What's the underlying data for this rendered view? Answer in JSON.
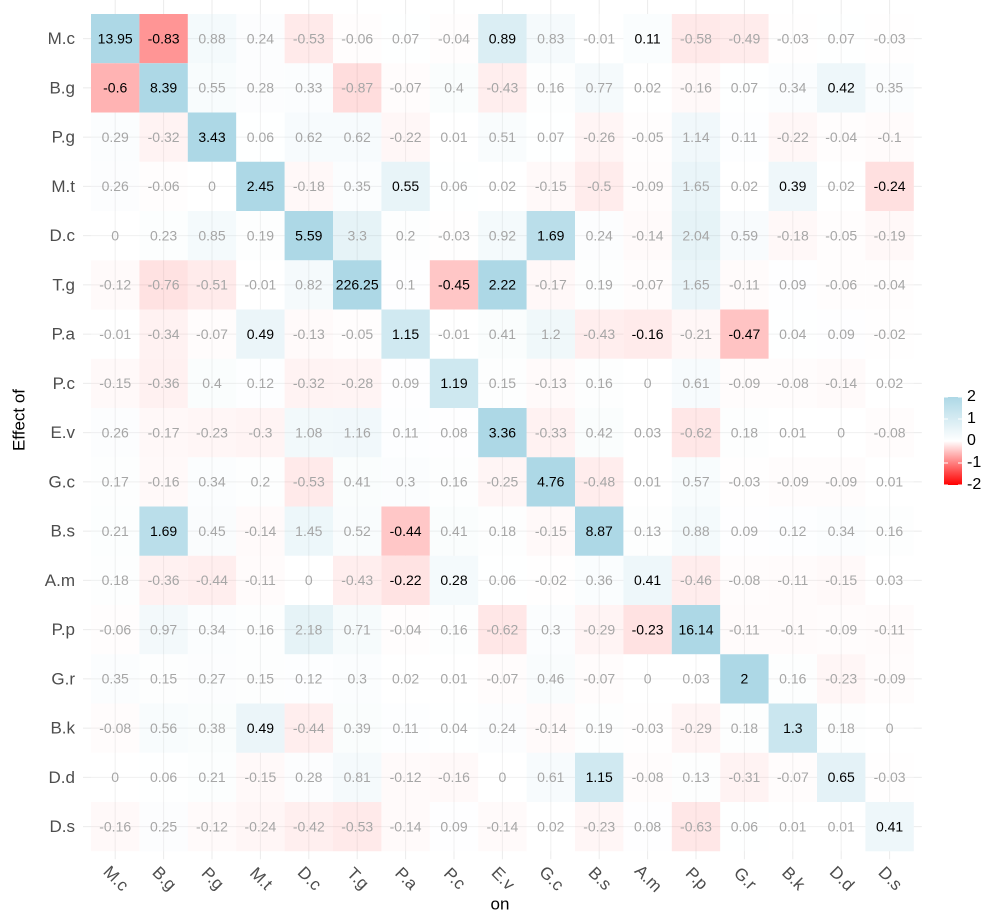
{
  "chart_data": {
    "type": "heatmap",
    "xlabel": "on",
    "ylabel": "Effect of",
    "x": [
      "M.c",
      "B.g",
      "P.g",
      "M.t",
      "D.c",
      "T.g",
      "P.a",
      "P.c",
      "E.v",
      "G.c",
      "B.s",
      "A.m",
      "P.p",
      "G.r",
      "B.k",
      "D.d",
      "D.s"
    ],
    "y": [
      "M.c",
      "B.g",
      "P.g",
      "M.t",
      "D.c",
      "T.g",
      "P.a",
      "P.c",
      "E.v",
      "G.c",
      "B.s",
      "A.m",
      "P.p",
      "G.r",
      "B.k",
      "D.d",
      "D.s"
    ],
    "values": [
      [
        13.95,
        -0.83,
        0.88,
        0.24,
        -0.53,
        -0.06,
        0.07,
        -0.04,
        0.89,
        0.83,
        -0.01,
        0.11,
        -0.58,
        -0.49,
        -0.03,
        0.07,
        -0.03
      ],
      [
        -0.6,
        8.39,
        0.55,
        0.28,
        0.33,
        -0.87,
        -0.07,
        0.4,
        -0.43,
        0.16,
        0.77,
        0.02,
        -0.16,
        0.07,
        0.34,
        0.42,
        0.35
      ],
      [
        0.29,
        -0.32,
        3.43,
        0.06,
        0.62,
        0.62,
        -0.22,
        0.01,
        0.51,
        0.07,
        -0.26,
        -0.05,
        1.14,
        0.11,
        -0.22,
        -0.04,
        -0.1
      ],
      [
        0.26,
        -0.06,
        0,
        2.45,
        -0.18,
        0.35,
        0.55,
        0.06,
        0.02,
        -0.15,
        -0.5,
        -0.09,
        1.65,
        0.02,
        0.39,
        0.02,
        -0.24
      ],
      [
        0,
        0.23,
        0.85,
        0.19,
        5.59,
        3.3,
        0.2,
        -0.03,
        0.92,
        1.69,
        0.24,
        -0.14,
        2.04,
        0.59,
        -0.18,
        -0.05,
        -0.19
      ],
      [
        -0.12,
        -0.76,
        -0.51,
        -0.01,
        0.82,
        226.25,
        0.1,
        -0.45,
        2.22,
        -0.17,
        0.19,
        -0.07,
        1.65,
        -0.11,
        0.09,
        -0.06,
        -0.04
      ],
      [
        -0.01,
        -0.34,
        -0.07,
        0.49,
        -0.13,
        -0.05,
        1.15,
        -0.01,
        0.41,
        1.2,
        -0.43,
        -0.16,
        -0.21,
        -0.47,
        0.04,
        0.09,
        -0.02
      ],
      [
        -0.15,
        -0.36,
        0.4,
        0.12,
        -0.32,
        -0.28,
        0.09,
        1.19,
        0.15,
        -0.13,
        0.16,
        0,
        0.61,
        -0.09,
        -0.08,
        -0.14,
        0.02
      ],
      [
        0.26,
        -0.17,
        -0.23,
        -0.3,
        1.08,
        1.16,
        0.11,
        0.08,
        3.36,
        -0.33,
        0.42,
        0.03,
        -0.62,
        0.18,
        0.01,
        0,
        -0.08
      ],
      [
        0.17,
        -0.16,
        0.34,
        0.2,
        -0.53,
        0.41,
        0.3,
        0.16,
        -0.25,
        4.76,
        -0.48,
        0.01,
        0.57,
        -0.03,
        -0.09,
        -0.09,
        0.01
      ],
      [
        0.21,
        1.69,
        0.45,
        -0.14,
        1.45,
        0.52,
        -0.44,
        0.41,
        0.18,
        -0.15,
        8.87,
        0.13,
        0.88,
        0.09,
        0.12,
        0.34,
        0.16
      ],
      [
        0.18,
        -0.36,
        -0.44,
        -0.11,
        0,
        -0.43,
        -0.22,
        0.28,
        0.06,
        -0.02,
        0.36,
        0.41,
        -0.46,
        -0.08,
        -0.11,
        -0.15,
        0.03
      ],
      [
        -0.06,
        0.97,
        0.34,
        0.16,
        2.18,
        0.71,
        -0.04,
        0.16,
        -0.62,
        0.3,
        -0.29,
        -0.23,
        16.14,
        -0.11,
        -0.1,
        -0.09,
        -0.11
      ],
      [
        0.35,
        0.15,
        0.27,
        0.15,
        0.12,
        0.3,
        0.02,
        0.01,
        -0.07,
        0.46,
        -0.07,
        0,
        0.03,
        2,
        0.16,
        -0.23,
        -0.09
      ],
      [
        -0.08,
        0.56,
        0.38,
        0.49,
        -0.44,
        0.39,
        0.11,
        0.04,
        0.24,
        -0.14,
        0.19,
        -0.03,
        -0.29,
        0.18,
        1.3,
        0.18,
        0
      ],
      [
        0,
        0.06,
        0.21,
        -0.15,
        0.28,
        0.81,
        -0.12,
        -0.16,
        0,
        0.61,
        1.15,
        -0.08,
        0.13,
        -0.31,
        -0.07,
        0.65,
        -0.03
      ],
      [
        -0.16,
        0.25,
        -0.12,
        -0.24,
        -0.42,
        -0.53,
        -0.14,
        0.09,
        -0.14,
        0.02,
        -0.23,
        0.08,
        -0.63,
        0.06,
        0.01,
        0.01,
        0.41
      ]
    ],
    "significant": [
      [
        1,
        1,
        0,
        0,
        0,
        0,
        0,
        0,
        1,
        0,
        0,
        1,
        0,
        0,
        0,
        0,
        0
      ],
      [
        1,
        1,
        0,
        0,
        0,
        0,
        0,
        0,
        0,
        0,
        0,
        0,
        0,
        0,
        0,
        1,
        0
      ],
      [
        0,
        0,
        1,
        0,
        0,
        0,
        0,
        0,
        0,
        0,
        0,
        0,
        0,
        0,
        0,
        0,
        0
      ],
      [
        0,
        0,
        0,
        1,
        0,
        0,
        1,
        0,
        0,
        0,
        0,
        0,
        0,
        0,
        1,
        0,
        1
      ],
      [
        0,
        0,
        0,
        0,
        1,
        0,
        0,
        0,
        0,
        1,
        0,
        0,
        0,
        0,
        0,
        0,
        0
      ],
      [
        0,
        0,
        0,
        0,
        0,
        1,
        0,
        1,
        1,
        0,
        0,
        0,
        0,
        0,
        0,
        0,
        0
      ],
      [
        0,
        0,
        0,
        1,
        0,
        0,
        1,
        0,
        0,
        0,
        0,
        1,
        0,
        1,
        0,
        0,
        0
      ],
      [
        0,
        0,
        0,
        0,
        0,
        0,
        0,
        1,
        0,
        0,
        0,
        0,
        0,
        0,
        0,
        0,
        0
      ],
      [
        0,
        0,
        0,
        0,
        0,
        0,
        0,
        0,
        1,
        0,
        0,
        0,
        0,
        0,
        0,
        0,
        0
      ],
      [
        0,
        0,
        0,
        0,
        0,
        0,
        0,
        0,
        0,
        1,
        0,
        0,
        0,
        0,
        0,
        0,
        0
      ],
      [
        0,
        1,
        0,
        0,
        0,
        0,
        1,
        0,
        0,
        0,
        1,
        0,
        0,
        0,
        0,
        0,
        0
      ],
      [
        0,
        0,
        0,
        0,
        0,
        0,
        1,
        1,
        0,
        0,
        0,
        1,
        0,
        0,
        0,
        0,
        0
      ],
      [
        0,
        0,
        0,
        0,
        0,
        0,
        0,
        0,
        0,
        0,
        0,
        1,
        1,
        0,
        0,
        0,
        0
      ],
      [
        0,
        0,
        0,
        0,
        0,
        0,
        0,
        0,
        0,
        0,
        0,
        0,
        0,
        1,
        0,
        0,
        0
      ],
      [
        0,
        0,
        0,
        1,
        0,
        0,
        0,
        0,
        0,
        0,
        0,
        0,
        0,
        0,
        1,
        0,
        0
      ],
      [
        0,
        0,
        0,
        0,
        0,
        0,
        0,
        0,
        0,
        0,
        1,
        0,
        0,
        0,
        0,
        1,
        0
      ],
      [
        0,
        0,
        0,
        0,
        0,
        0,
        0,
        0,
        0,
        0,
        0,
        0,
        0,
        0,
        0,
        0,
        1
      ]
    ],
    "clim": [
      -2,
      2
    ],
    "cticks": [
      -2,
      -1,
      0,
      1,
      2
    ],
    "colors": {
      "low": "#ff0000",
      "mid": "#ffffff",
      "high": "#add8e6"
    },
    "grid": true
  }
}
